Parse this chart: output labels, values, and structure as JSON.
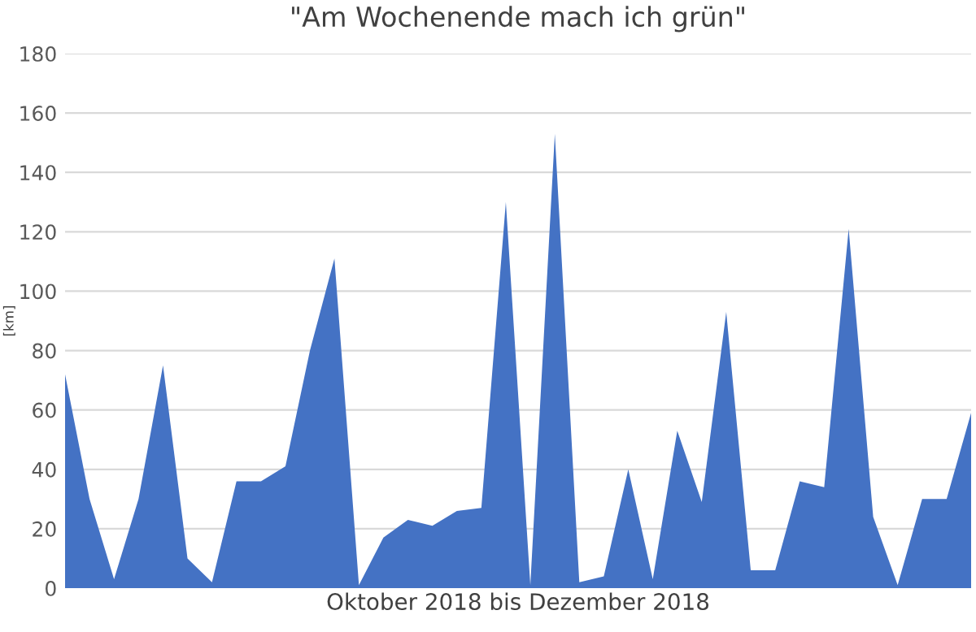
{
  "chart_data": {
    "type": "area",
    "title": "\"Am Wochenende mach ich grün\"",
    "xlabel": "Oktober 2018 bis Dezember 2018",
    "ylabel": "[km]",
    "categories": [
      null,
      null,
      null,
      null,
      null,
      null,
      null,
      null,
      null,
      null,
      null,
      null,
      null,
      null,
      null,
      null,
      null,
      null,
      null,
      null,
      null,
      null,
      null,
      null,
      null,
      null,
      null,
      null,
      null,
      null,
      null,
      null,
      null,
      null,
      null,
      null,
      null,
      null
    ],
    "series": [
      {
        "color": "#4472c4",
        "values": [
          72,
          30,
          3,
          30,
          75,
          10,
          2,
          36,
          36,
          41,
          80,
          111,
          1,
          17,
          23,
          21,
          26,
          27,
          130,
          1,
          153,
          2,
          4,
          40,
          3,
          53,
          29,
          93,
          6,
          6,
          36,
          34,
          121,
          24,
          1,
          30,
          30,
          59
        ]
      }
    ],
    "ylim": [
      0,
      180
    ],
    "yticks": [
      0,
      20,
      40,
      60,
      80,
      100,
      120,
      140,
      160,
      180
    ],
    "grid": "y",
    "tick_labels": "y",
    "legend": false
  }
}
